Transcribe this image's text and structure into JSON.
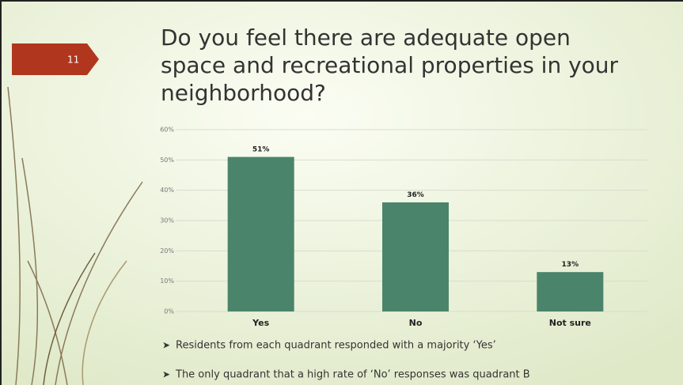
{
  "slide_number": "11",
  "bullets": [
    "Residents from each quadrant responded with a majority ‘Yes’",
    "The only quadrant that a high rate of ‘No’ responses was quadrant B"
  ],
  "chart_data": {
    "type": "bar",
    "title": "Do you feel there are adequate open space and recreational properties in your neighborhood?",
    "categories": [
      "Yes",
      "No",
      "Not sure"
    ],
    "values": [
      51,
      36,
      13
    ],
    "value_labels": [
      "51%",
      "36%",
      "13%"
    ],
    "color": "#4a846b",
    "ylim": [
      0,
      60
    ],
    "yticks": [
      {
        "value": 0,
        "label": "0%"
      },
      {
        "value": 10,
        "label": "10%"
      },
      {
        "value": 20,
        "label": "20%"
      },
      {
        "value": 30,
        "label": "30%"
      },
      {
        "value": 40,
        "label": "40%"
      },
      {
        "value": 50,
        "label": "50%"
      },
      {
        "value": 60,
        "label": "60%"
      }
    ],
    "grid": true
  }
}
